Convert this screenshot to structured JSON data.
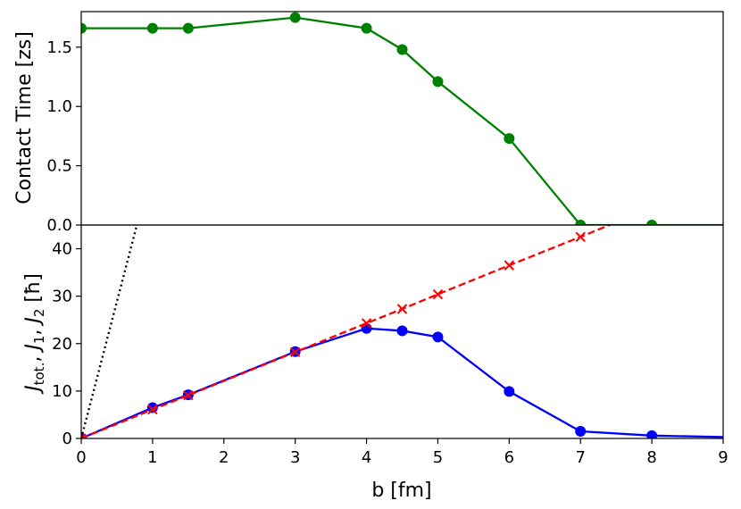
{
  "colors": {
    "contact": "#008000",
    "jtot": "#0000ff",
    "jdash": "#ff0000",
    "dotted": "#000000"
  },
  "chart_data": [
    {
      "type": "line",
      "title": "",
      "xlabel": "",
      "ylabel": "Contact Time [zs]",
      "xlim": [
        0,
        9
      ],
      "ylim": [
        0,
        1.8
      ],
      "yticks": [
        "0.0",
        "0.5",
        "1.0",
        "1.5"
      ],
      "ytick_values": [
        0,
        0.5,
        1.0,
        1.5
      ],
      "grid": false,
      "series": [
        {
          "color": "#008000",
          "marker": "circle",
          "linestyle": "solid",
          "x": [
            0,
            1,
            1.5,
            3,
            4,
            4.5,
            5,
            6,
            7,
            8,
            9
          ],
          "y": [
            1.66,
            1.66,
            1.66,
            1.75,
            1.66,
            1.48,
            1.21,
            0.73,
            0.0,
            0.0,
            0.0
          ],
          "marker_x": [
            0,
            1,
            1.5,
            3,
            4,
            4.5,
            5,
            6,
            7,
            8
          ]
        }
      ]
    },
    {
      "type": "line",
      "title": "",
      "xlabel": "b [fm]",
      "ylabel": "J_tot., J_1, J_2 [ħ]",
      "ylabel_parts": {
        "j": "J",
        "sub_tot": "tot.",
        "sep": ", ",
        "sub_1": "1",
        "sub_2": "2",
        "unit": " [ħ]"
      },
      "xlim": [
        0,
        9
      ],
      "ylim": [
        0,
        45
      ],
      "xticks": [
        "0",
        "1",
        "2",
        "3",
        "4",
        "5",
        "6",
        "7",
        "8",
        "9"
      ],
      "xtick_values": [
        0,
        1,
        2,
        3,
        4,
        5,
        6,
        7,
        8,
        9
      ],
      "yticks": [
        "0",
        "10",
        "20",
        "30",
        "40"
      ],
      "ytick_values": [
        0,
        10,
        20,
        30,
        40
      ],
      "grid": false,
      "series": [
        {
          "color": "#0000ff",
          "marker": "circle",
          "linestyle": "solid",
          "x": [
            0,
            1,
            1.5,
            3,
            4,
            4.5,
            5,
            6,
            7,
            8,
            9
          ],
          "y": [
            0,
            6.5,
            9.2,
            18.3,
            23.2,
            22.7,
            21.4,
            9.9,
            1.5,
            0.6,
            0.3
          ],
          "marker_x": [
            0,
            1,
            1.5,
            3,
            4,
            4.5,
            5,
            6,
            7,
            8
          ]
        },
        {
          "color": "#ff0000",
          "marker": "x",
          "linestyle": "dashed",
          "x": [
            0,
            1,
            1.5,
            3,
            4,
            4.5,
            5,
            6,
            7,
            7.6
          ],
          "y": [
            0,
            6.1,
            9.1,
            18.2,
            24.3,
            27.3,
            30.4,
            36.5,
            42.5,
            46.2
          ],
          "marker_x": [
            0,
            1,
            1.5,
            3,
            4,
            4.5,
            5,
            6,
            7
          ]
        },
        {
          "color": "#000000",
          "marker": "none",
          "linestyle": "dotted",
          "x": [
            0,
            0.78
          ],
          "y": [
            0,
            45
          ]
        }
      ]
    }
  ]
}
